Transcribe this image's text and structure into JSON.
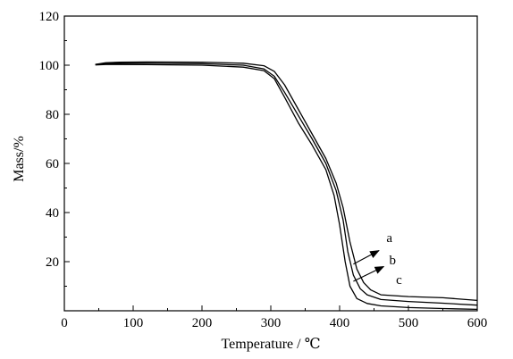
{
  "chart_data": {
    "type": "line",
    "title": "",
    "xlabel": "Temperature / ℃",
    "ylabel": "Mass/%",
    "xlim": [
      0,
      600
    ],
    "ylim": [
      0,
      120
    ],
    "x_ticks": [
      "0",
      "100",
      "200",
      "300",
      "400",
      "500",
      "600"
    ],
    "y_ticks": [
      "20",
      "40",
      "60",
      "80",
      "100",
      "120"
    ],
    "grid": false,
    "legend": "none",
    "line_color": "#000000",
    "series": [
      {
        "label": "a",
        "x": [
          45,
          60,
          80,
          120,
          200,
          260,
          290,
          305,
          320,
          340,
          360,
          380,
          395,
          405,
          415,
          425,
          435,
          445,
          460,
          500,
          550,
          600
        ],
        "y": [
          100.3,
          101.0,
          101.2,
          101.3,
          101.2,
          100.8,
          99.8,
          97.5,
          92.0,
          82.0,
          72.0,
          62.0,
          52.0,
          42.0,
          28.0,
          17.0,
          11.5,
          8.5,
          6.5,
          5.8,
          5.3,
          4.2
        ]
      },
      {
        "label": "b",
        "x": [
          45,
          60,
          80,
          120,
          200,
          260,
          290,
          305,
          320,
          340,
          360,
          380,
          395,
          405,
          412,
          420,
          430,
          440,
          460,
          500,
          550,
          600
        ],
        "y": [
          100.3,
          100.7,
          100.8,
          100.8,
          100.6,
          100.0,
          98.5,
          95.5,
          89.0,
          79.5,
          70.0,
          60.0,
          49.0,
          37.0,
          24.0,
          14.5,
          9.0,
          6.5,
          4.6,
          3.8,
          3.1,
          2.3
        ]
      },
      {
        "label": "c",
        "x": [
          45,
          60,
          80,
          120,
          200,
          260,
          290,
          305,
          320,
          340,
          360,
          380,
          392,
          400,
          408,
          415,
          425,
          440,
          460,
          500,
          550,
          600
        ],
        "y": [
          100.1,
          100.3,
          100.3,
          100.2,
          100.0,
          99.2,
          97.8,
          94.5,
          87.0,
          76.5,
          67.5,
          57.5,
          47.0,
          35.0,
          20.0,
          10.0,
          5.0,
          3.0,
          2.0,
          1.3,
          0.9,
          0.6
        ]
      }
    ],
    "annotations": [
      {
        "text": "a",
        "arrow_from": [
          420,
          19
        ],
        "arrow_to": [
          457,
          24.5
        ],
        "label_at": [
          468,
          28
        ]
      },
      {
        "text": "b",
        "arrow_from": [
          420,
          12
        ],
        "arrow_to": [
          464,
          18
        ],
        "label_at": [
          472,
          19
        ]
      },
      {
        "text": "c",
        "label_at": [
          482,
          11
        ]
      }
    ]
  }
}
